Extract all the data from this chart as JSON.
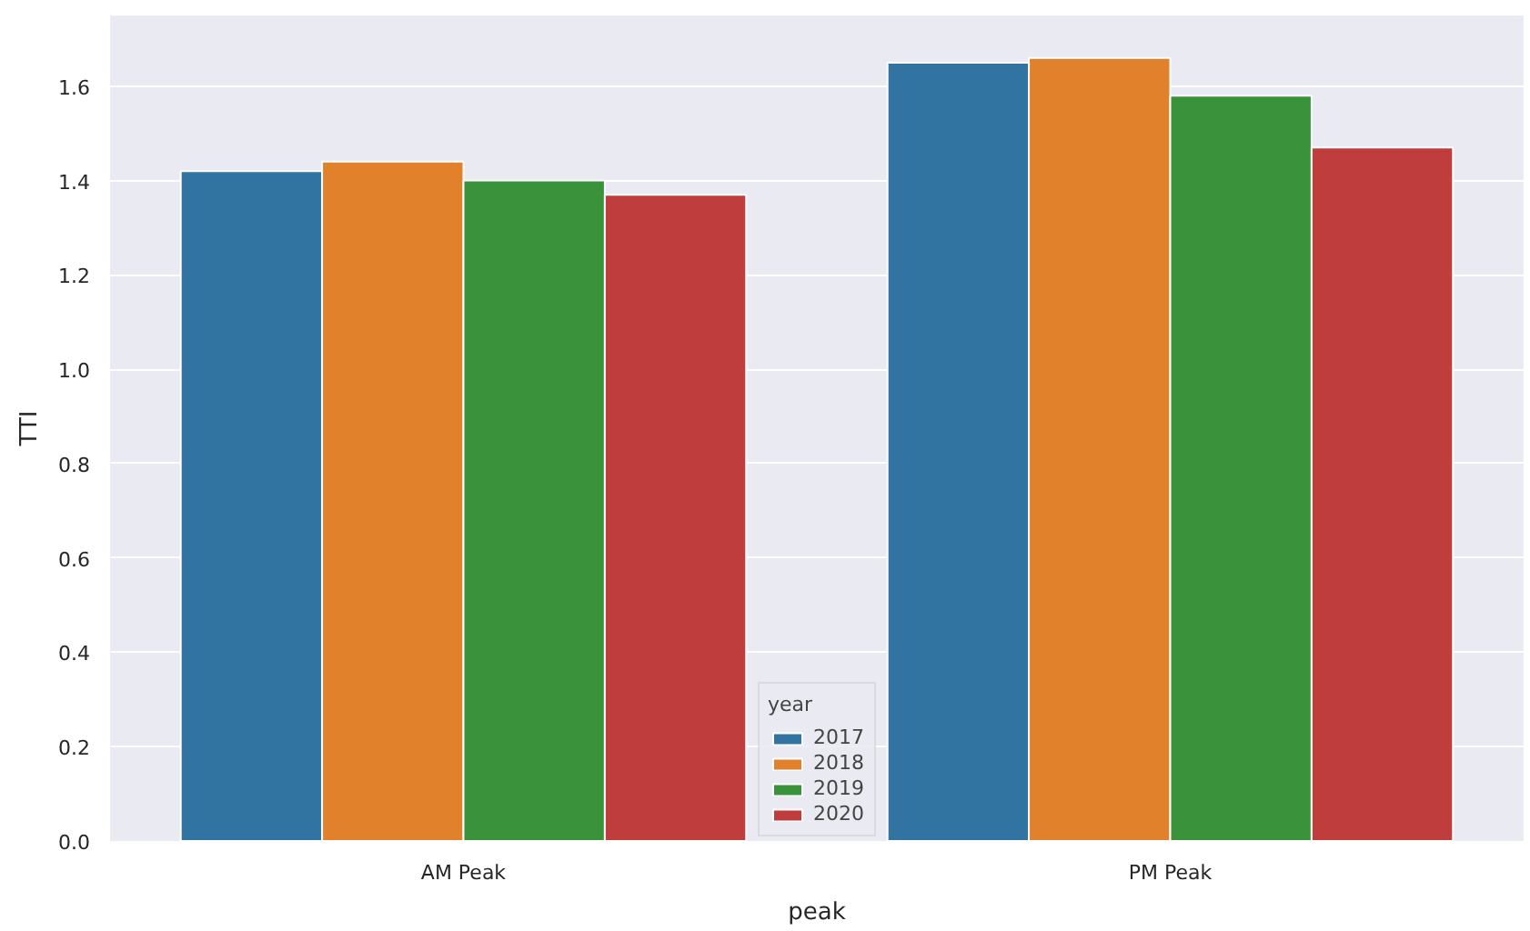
{
  "chart_data": {
    "type": "bar",
    "xlabel": "peak",
    "ylabel": "TTI",
    "legend_title": "year",
    "categories": [
      "AM Peak",
      "PM Peak"
    ],
    "series": [
      {
        "name": "2017",
        "color": "#3274a1",
        "values": [
          1.42,
          1.65
        ]
      },
      {
        "name": "2018",
        "color": "#e1812c",
        "values": [
          1.44,
          1.66
        ]
      },
      {
        "name": "2019",
        "color": "#3a923a",
        "values": [
          1.4,
          1.58
        ]
      },
      {
        "name": "2020",
        "color": "#c03d3e",
        "values": [
          1.37,
          1.47
        ]
      }
    ],
    "ylim": [
      0,
      1.75
    ],
    "yticks": [
      {
        "value": 0,
        "label": "0.0"
      },
      0.2,
      0.4,
      0.6,
      0.8,
      {
        "value": 1,
        "label": "1.0"
      },
      1.2,
      1.4,
      1.6
    ],
    "grid": "y",
    "legend": "bottom"
  }
}
